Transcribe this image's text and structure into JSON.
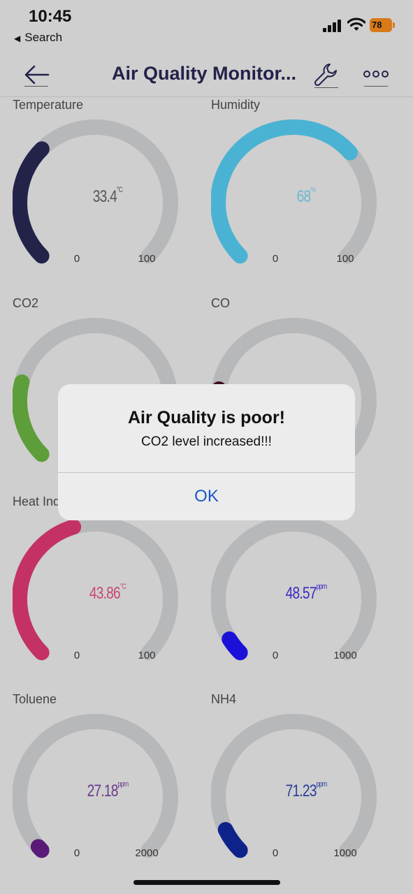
{
  "status_bar": {
    "time": "10:45",
    "back_label": "Search",
    "battery": "78"
  },
  "nav": {
    "title": "Air Quality Monitor..."
  },
  "colors": {
    "track": "#b7b8ba",
    "dialog_ok": "#1a57c9"
  },
  "gauges": [
    {
      "label": "Temperature",
      "value": "33.4",
      "unit": "°C",
      "min": "0",
      "max": "100",
      "fraction": 0.334,
      "color": "#23234a",
      "text_color": "#555"
    },
    {
      "label": "Humidity",
      "value": "68",
      "unit": "%",
      "min": "0",
      "max": "100",
      "fraction": 0.68,
      "color": "#4ab3d4",
      "text_color": "#6ab8cf"
    },
    {
      "label": "CO2",
      "value": "",
      "unit": "",
      "min": "",
      "max": "",
      "fraction": 0.22,
      "color": "#5e9e3a",
      "text_color": "#555"
    },
    {
      "label": "CO",
      "value": "",
      "unit": "",
      "min": "",
      "max": "",
      "fraction": 0.2,
      "color": "#3e0a1e",
      "text_color": "#555"
    },
    {
      "label": "Heat Index",
      "value": "43.86",
      "unit": "°C",
      "min": "0",
      "max": "100",
      "fraction": 0.4386,
      "color": "#c43265",
      "text_color": "#c84873"
    },
    {
      "label": "",
      "value": "48.57",
      "unit": "ppm",
      "min": "0",
      "max": "1000",
      "fraction": 0.04857,
      "color": "#1a10d8",
      "text_color": "#3a2cc4"
    },
    {
      "label": "Toluene",
      "value": "27.18",
      "unit": "ppm",
      "min": "0",
      "max": "2000",
      "fraction": 0.01359,
      "color": "#5a1a78",
      "text_color": "#6a3a8a"
    },
    {
      "label": "NH4",
      "value": "71.23",
      "unit": "ppm",
      "min": "0",
      "max": "1000",
      "fraction": 0.07123,
      "color": "#0e238a",
      "text_color": "#2a3e9a"
    }
  ],
  "dialog": {
    "title": "Air Quality is poor!",
    "message": "CO2 level increased!!!",
    "ok_label": "OK"
  }
}
